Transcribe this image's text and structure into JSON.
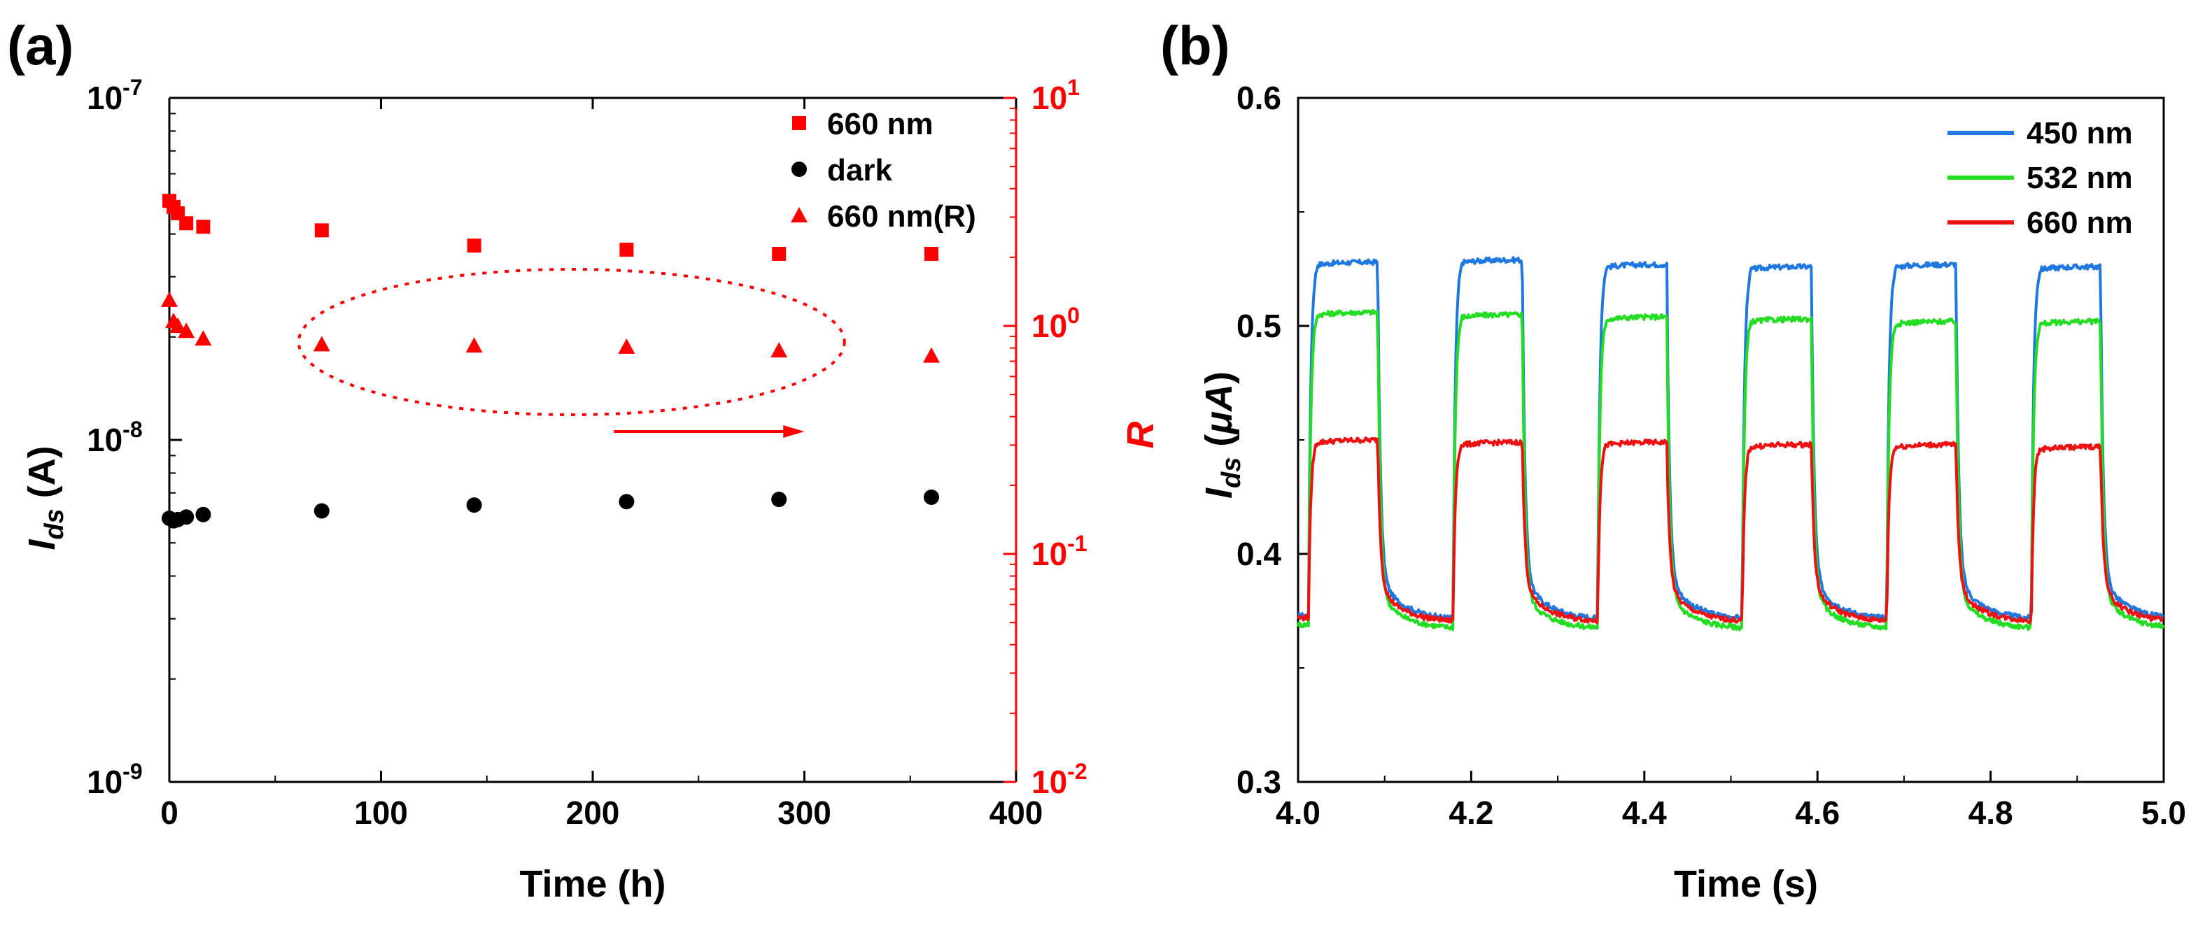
{
  "chart_data": [
    {
      "panel": "(a)",
      "type": "scatter",
      "xlabel": "Time (h)",
      "ylabel_left": "I_ds (A)",
      "ylabel_right": "R",
      "xlim": [
        0,
        400
      ],
      "xticks": [
        "0",
        "100",
        "200",
        "300",
        "400"
      ],
      "ylim_left": [
        1e-09,
        1e-07
      ],
      "ylim_right": [
        0.01,
        10
      ],
      "yticks_left": [
        {
          "base": "10",
          "exp": "-9",
          "value": 1e-09
        },
        {
          "base": "10",
          "exp": "-8",
          "value": 1e-08
        },
        {
          "base": "10",
          "exp": "-7",
          "value": 1e-07
        }
      ],
      "yticks_right": [
        {
          "base": "10",
          "exp": "-2",
          "value": 0.01
        },
        {
          "base": "10",
          "exp": "-1",
          "value": 0.1
        },
        {
          "base": "10",
          "exp": "0",
          "value": 1
        },
        {
          "base": "10",
          "exp": "1",
          "value": 10
        }
      ],
      "series": [
        {
          "name": "660 nm",
          "marker": "square",
          "color": "#ff0000",
          "axis": "left",
          "x": [
            0,
            2,
            4,
            8,
            16,
            72,
            144,
            216,
            288,
            360
          ],
          "y": [
            5e-08,
            4.8e-08,
            4.6e-08,
            4.3e-08,
            4.2e-08,
            4.1e-08,
            3.7e-08,
            3.6e-08,
            3.5e-08,
            3.5e-08
          ]
        },
        {
          "name": "dark",
          "marker": "circle",
          "color": "#000000",
          "axis": "left",
          "x": [
            0,
            2,
            4,
            8,
            16,
            72,
            144,
            216,
            288,
            360
          ],
          "y": [
            5.9e-09,
            5.8e-09,
            5.85e-09,
            5.95e-09,
            6.05e-09,
            6.2e-09,
            6.45e-09,
            6.6e-09,
            6.7e-09,
            6.8e-09
          ]
        },
        {
          "name": "660 nm(R)",
          "marker": "triangle",
          "color": "#ff0000",
          "axis": "right",
          "x": [
            0,
            2,
            4,
            8,
            16,
            72,
            144,
            216,
            288,
            360
          ],
          "y": [
            1.3,
            1.05,
            1.0,
            0.95,
            0.88,
            0.83,
            0.82,
            0.81,
            0.78,
            0.74
          ]
        }
      ],
      "legend_position": "top-right",
      "annotation": "dotted ellipse around R points with arrow pointing to right axis"
    },
    {
      "panel": "(b)",
      "type": "line",
      "xlabel": "Time (s)",
      "ylabel": "I_ds (μA)",
      "xlim": [
        4.0,
        5.0
      ],
      "ylim": [
        0.3,
        0.6
      ],
      "xticks": [
        "4.0",
        "4.2",
        "4.4",
        "4.6",
        "4.8",
        "5.0"
      ],
      "yticks": [
        "0.3",
        "0.4",
        "0.5",
        "0.6"
      ],
      "period_s": 0.167,
      "on_duration_s": 0.08,
      "first_on_s": 4.012,
      "cycles": 6,
      "series": [
        {
          "name": "450 nm",
          "color": "#1f77e0",
          "on_levels": [
            0.528,
            0.529,
            0.527,
            0.526,
            0.527,
            0.526
          ],
          "off_start": 0.39,
          "off_end": 0.371
        },
        {
          "name": "532 nm",
          "color": "#22dd22",
          "on_levels": [
            0.506,
            0.505,
            0.504,
            0.503,
            0.502,
            0.502
          ],
          "off_start": 0.383,
          "off_end": 0.367
        },
        {
          "name": "660 nm",
          "color": "#ee1111",
          "on_levels": [
            0.45,
            0.449,
            0.449,
            0.448,
            0.448,
            0.447
          ],
          "off_start": 0.386,
          "off_end": 0.37
        }
      ],
      "legend_position": "top-right"
    }
  ]
}
